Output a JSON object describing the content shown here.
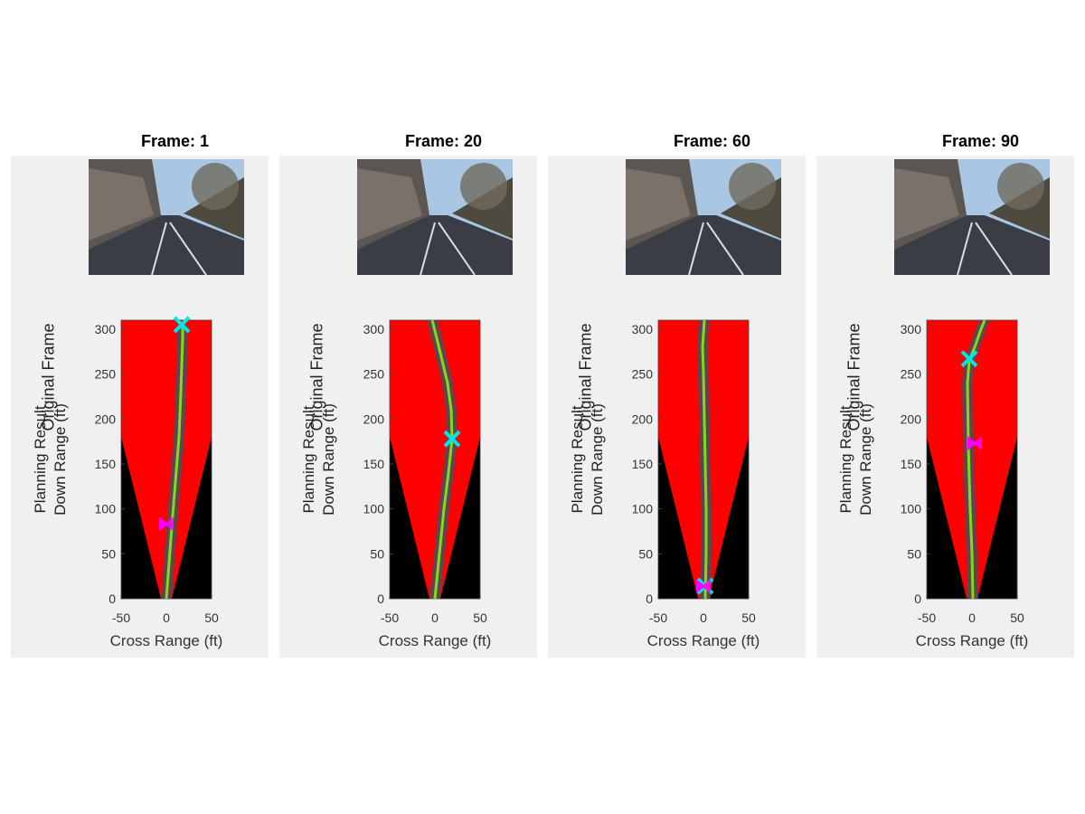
{
  "frames": [
    {
      "title": "Frame: 1",
      "top_ylabel": "Original Frame",
      "chart_data": {
        "type": "line",
        "title": "",
        "ylabel": [
          "Planning Result",
          "Down Range (ft)"
        ],
        "xlabel": "Cross Range (ft)",
        "xlim": [
          -50,
          50
        ],
        "ylim": [
          0,
          310
        ],
        "xticks": [
          -50,
          0,
          50
        ],
        "yticks": [
          0,
          50,
          100,
          150,
          200,
          250,
          300
        ],
        "series": [
          {
            "x": [
              0,
              3,
              6,
              10,
              14,
              16,
              17,
              18,
              18
            ],
            "y": [
              0,
              40,
              80,
              130,
              180,
              230,
              260,
              290,
              305
            ]
          }
        ],
        "markers": [
          {
            "kind": "goal",
            "color": "#00e5e5",
            "x": 17,
            "y": 305
          },
          {
            "kind": "vehicle",
            "color": "#ff00ff",
            "x": 0,
            "y": 83
          }
        ]
      }
    },
    {
      "title": "Frame: 20",
      "top_ylabel": "Original Frame",
      "chart_data": {
        "type": "line",
        "title": "",
        "ylabel": [
          "Planning Result",
          "Down Range (ft)"
        ],
        "xlabel": "Cross Range (ft)",
        "xlim": [
          -50,
          50
        ],
        "ylim": [
          0,
          310
        ],
        "xticks": [
          -50,
          0,
          50
        ],
        "yticks": [
          0,
          50,
          100,
          150,
          200,
          250,
          300
        ],
        "series": [
          {
            "x": [
              0,
              5,
              10,
              15,
              19,
              18,
              14,
              8,
              2,
              -3
            ],
            "y": [
              0,
              50,
              100,
              140,
              178,
              210,
              240,
              265,
              290,
              310
            ]
          }
        ],
        "markers": [
          {
            "kind": "goal",
            "color": "#00e5e5",
            "x": 19,
            "y": 178
          }
        ]
      }
    },
    {
      "title": "Frame: 60",
      "top_ylabel": "Original Frame",
      "chart_data": {
        "type": "line",
        "title": "",
        "ylabel": [
          "Planning Result",
          "Down Range (ft)"
        ],
        "xlabel": "Cross Range (ft)",
        "xlim": [
          -50,
          50
        ],
        "ylim": [
          0,
          310
        ],
        "xticks": [
          -50,
          0,
          50
        ],
        "yticks": [
          0,
          50,
          100,
          150,
          200,
          250,
          300
        ],
        "series": [
          {
            "x": [
              2,
              3,
              3,
              2,
              1,
              0,
              -1,
              0,
              1
            ],
            "y": [
              0,
              50,
              100,
              150,
              200,
              250,
              280,
              295,
              310
            ]
          }
        ],
        "markers": [
          {
            "kind": "goal",
            "color": "#00e5e5",
            "x": 2,
            "y": 14
          },
          {
            "kind": "vehicle",
            "color": "#ff00ff",
            "x": 0,
            "y": 14
          }
        ]
      }
    },
    {
      "title": "Frame: 90",
      "top_ylabel": "Original Frame",
      "chart_data": {
        "type": "line",
        "title": "",
        "ylabel": [
          "Planning Result",
          "Down Range (ft)"
        ],
        "xlabel": "Cross Range (ft)",
        "xlim": [
          -50,
          50
        ],
        "ylim": [
          0,
          310
        ],
        "xticks": [
          -50,
          0,
          50
        ],
        "yticks": [
          0,
          50,
          100,
          150,
          200,
          250,
          300
        ],
        "series": [
          {
            "x": [
              1,
              0,
              -2,
              -4,
              -5,
              -3,
              3,
              10,
              14
            ],
            "y": [
              0,
              50,
              100,
              170,
              240,
              265,
              280,
              300,
              310
            ]
          }
        ],
        "markers": [
          {
            "kind": "goal",
            "color": "#00e5e5",
            "x": -3,
            "y": 267
          },
          {
            "kind": "vehicle",
            "color": "#ff00ff",
            "x": 3,
            "y": 173
          }
        ]
      }
    }
  ]
}
